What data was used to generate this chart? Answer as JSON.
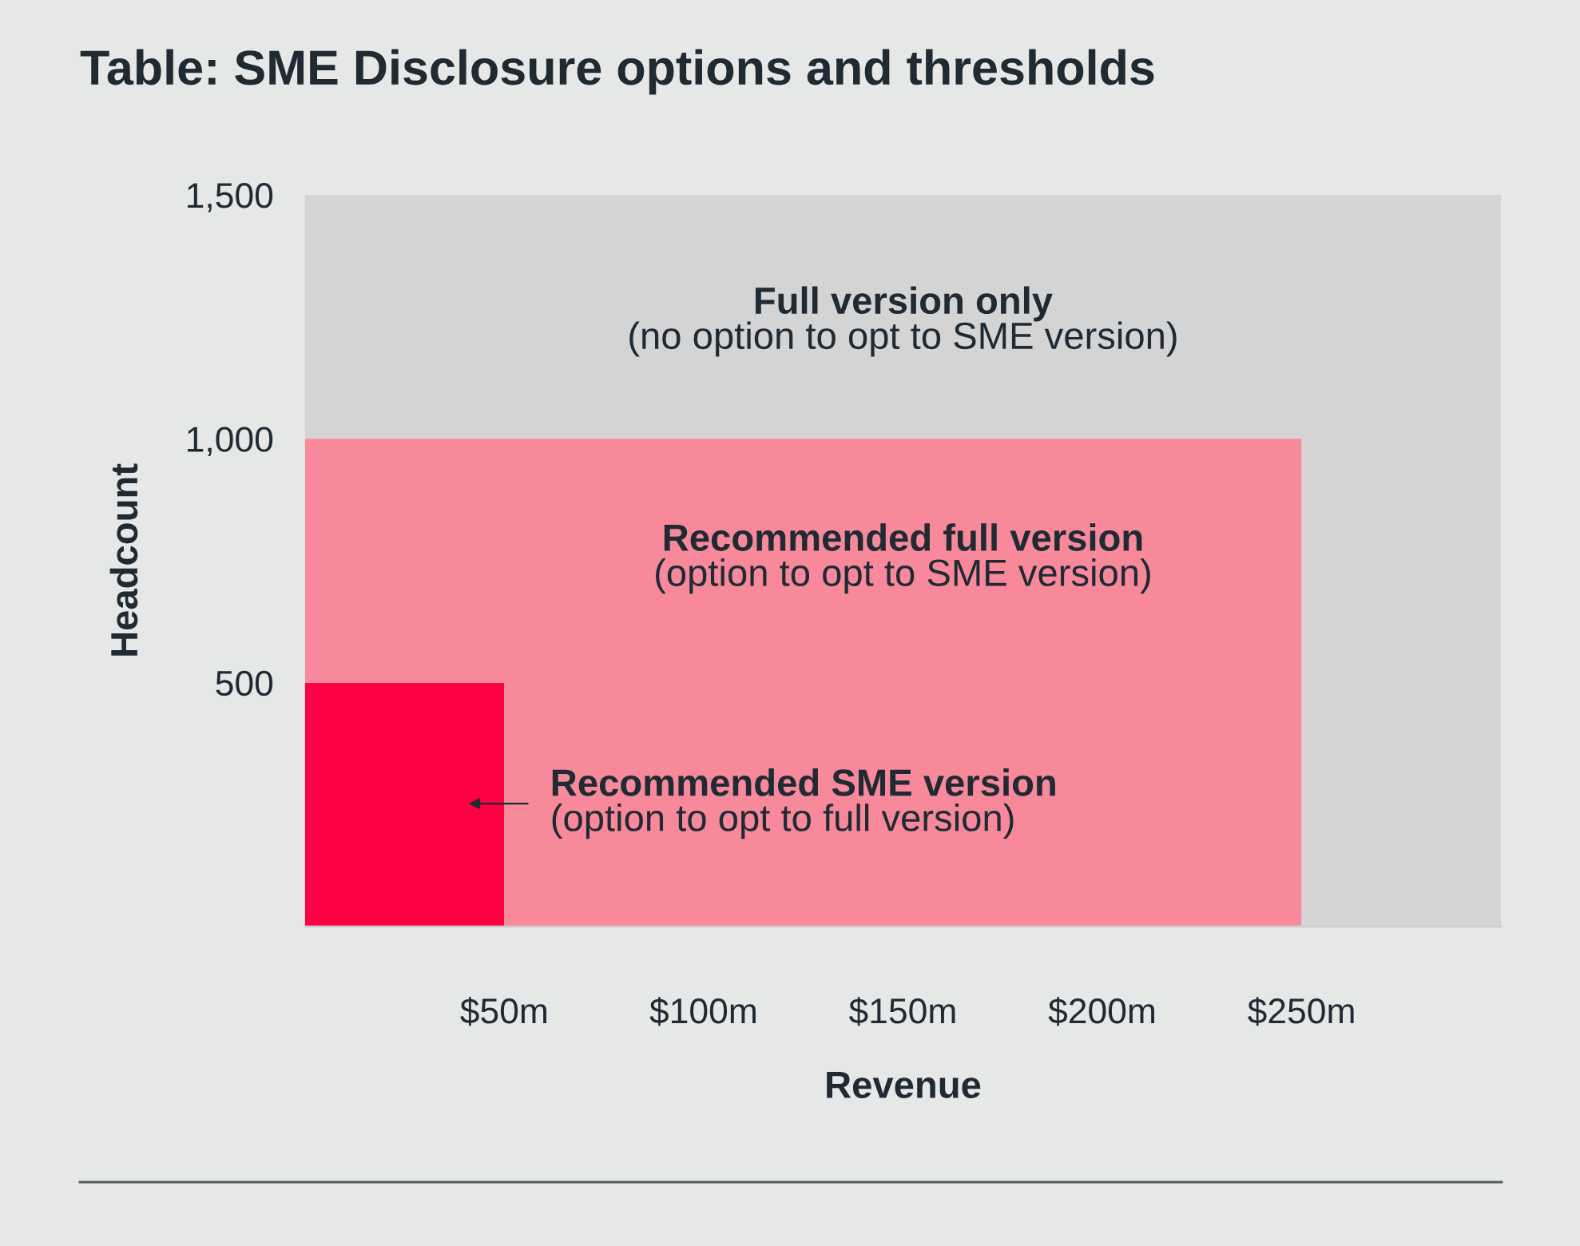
{
  "chart_data": {
    "type": "area",
    "stacked": true,
    "title": "Table: SME Disclosure options and thresholds",
    "xlabel": "Revenue",
    "ylabel": "Headcount",
    "x": [
      0,
      50,
      50,
      250,
      250,
      300
    ],
    "series": [
      {
        "color": "#fe0044",
        "values": [
          500,
          500,
          0,
          0,
          0,
          0
        ]
      },
      {
        "color": "#f7899b",
        "values": [
          500,
          500,
          1000,
          1000,
          0,
          0
        ]
      },
      {
        "color": "#d4d4d4",
        "values": [
          500,
          500,
          500,
          500,
          1500,
          1500
        ]
      }
    ],
    "xlim": [
      0,
      300
    ],
    "ylim": [
      0,
      1500
    ],
    "xticks": [
      {
        "value": 50,
        "label": "$50m"
      },
      {
        "value": 100,
        "label": "$100m"
      },
      {
        "value": 150,
        "label": "$150m"
      },
      {
        "value": 200,
        "label": "$200m"
      },
      {
        "value": 250,
        "label": "$250m"
      }
    ],
    "yticks": [
      {
        "value": 500,
        "label": "500"
      },
      {
        "value": 1000,
        "label": "1,000"
      },
      {
        "value": 1500,
        "label": "1,500"
      }
    ],
    "annotations": [
      "Full version only\n(no option to opt to SME version)",
      "Recommended full version\n(option to opt to SME version)",
      "Recommended SME version\n(option to opt to full version)"
    ],
    "grid": false,
    "legend": false
  }
}
